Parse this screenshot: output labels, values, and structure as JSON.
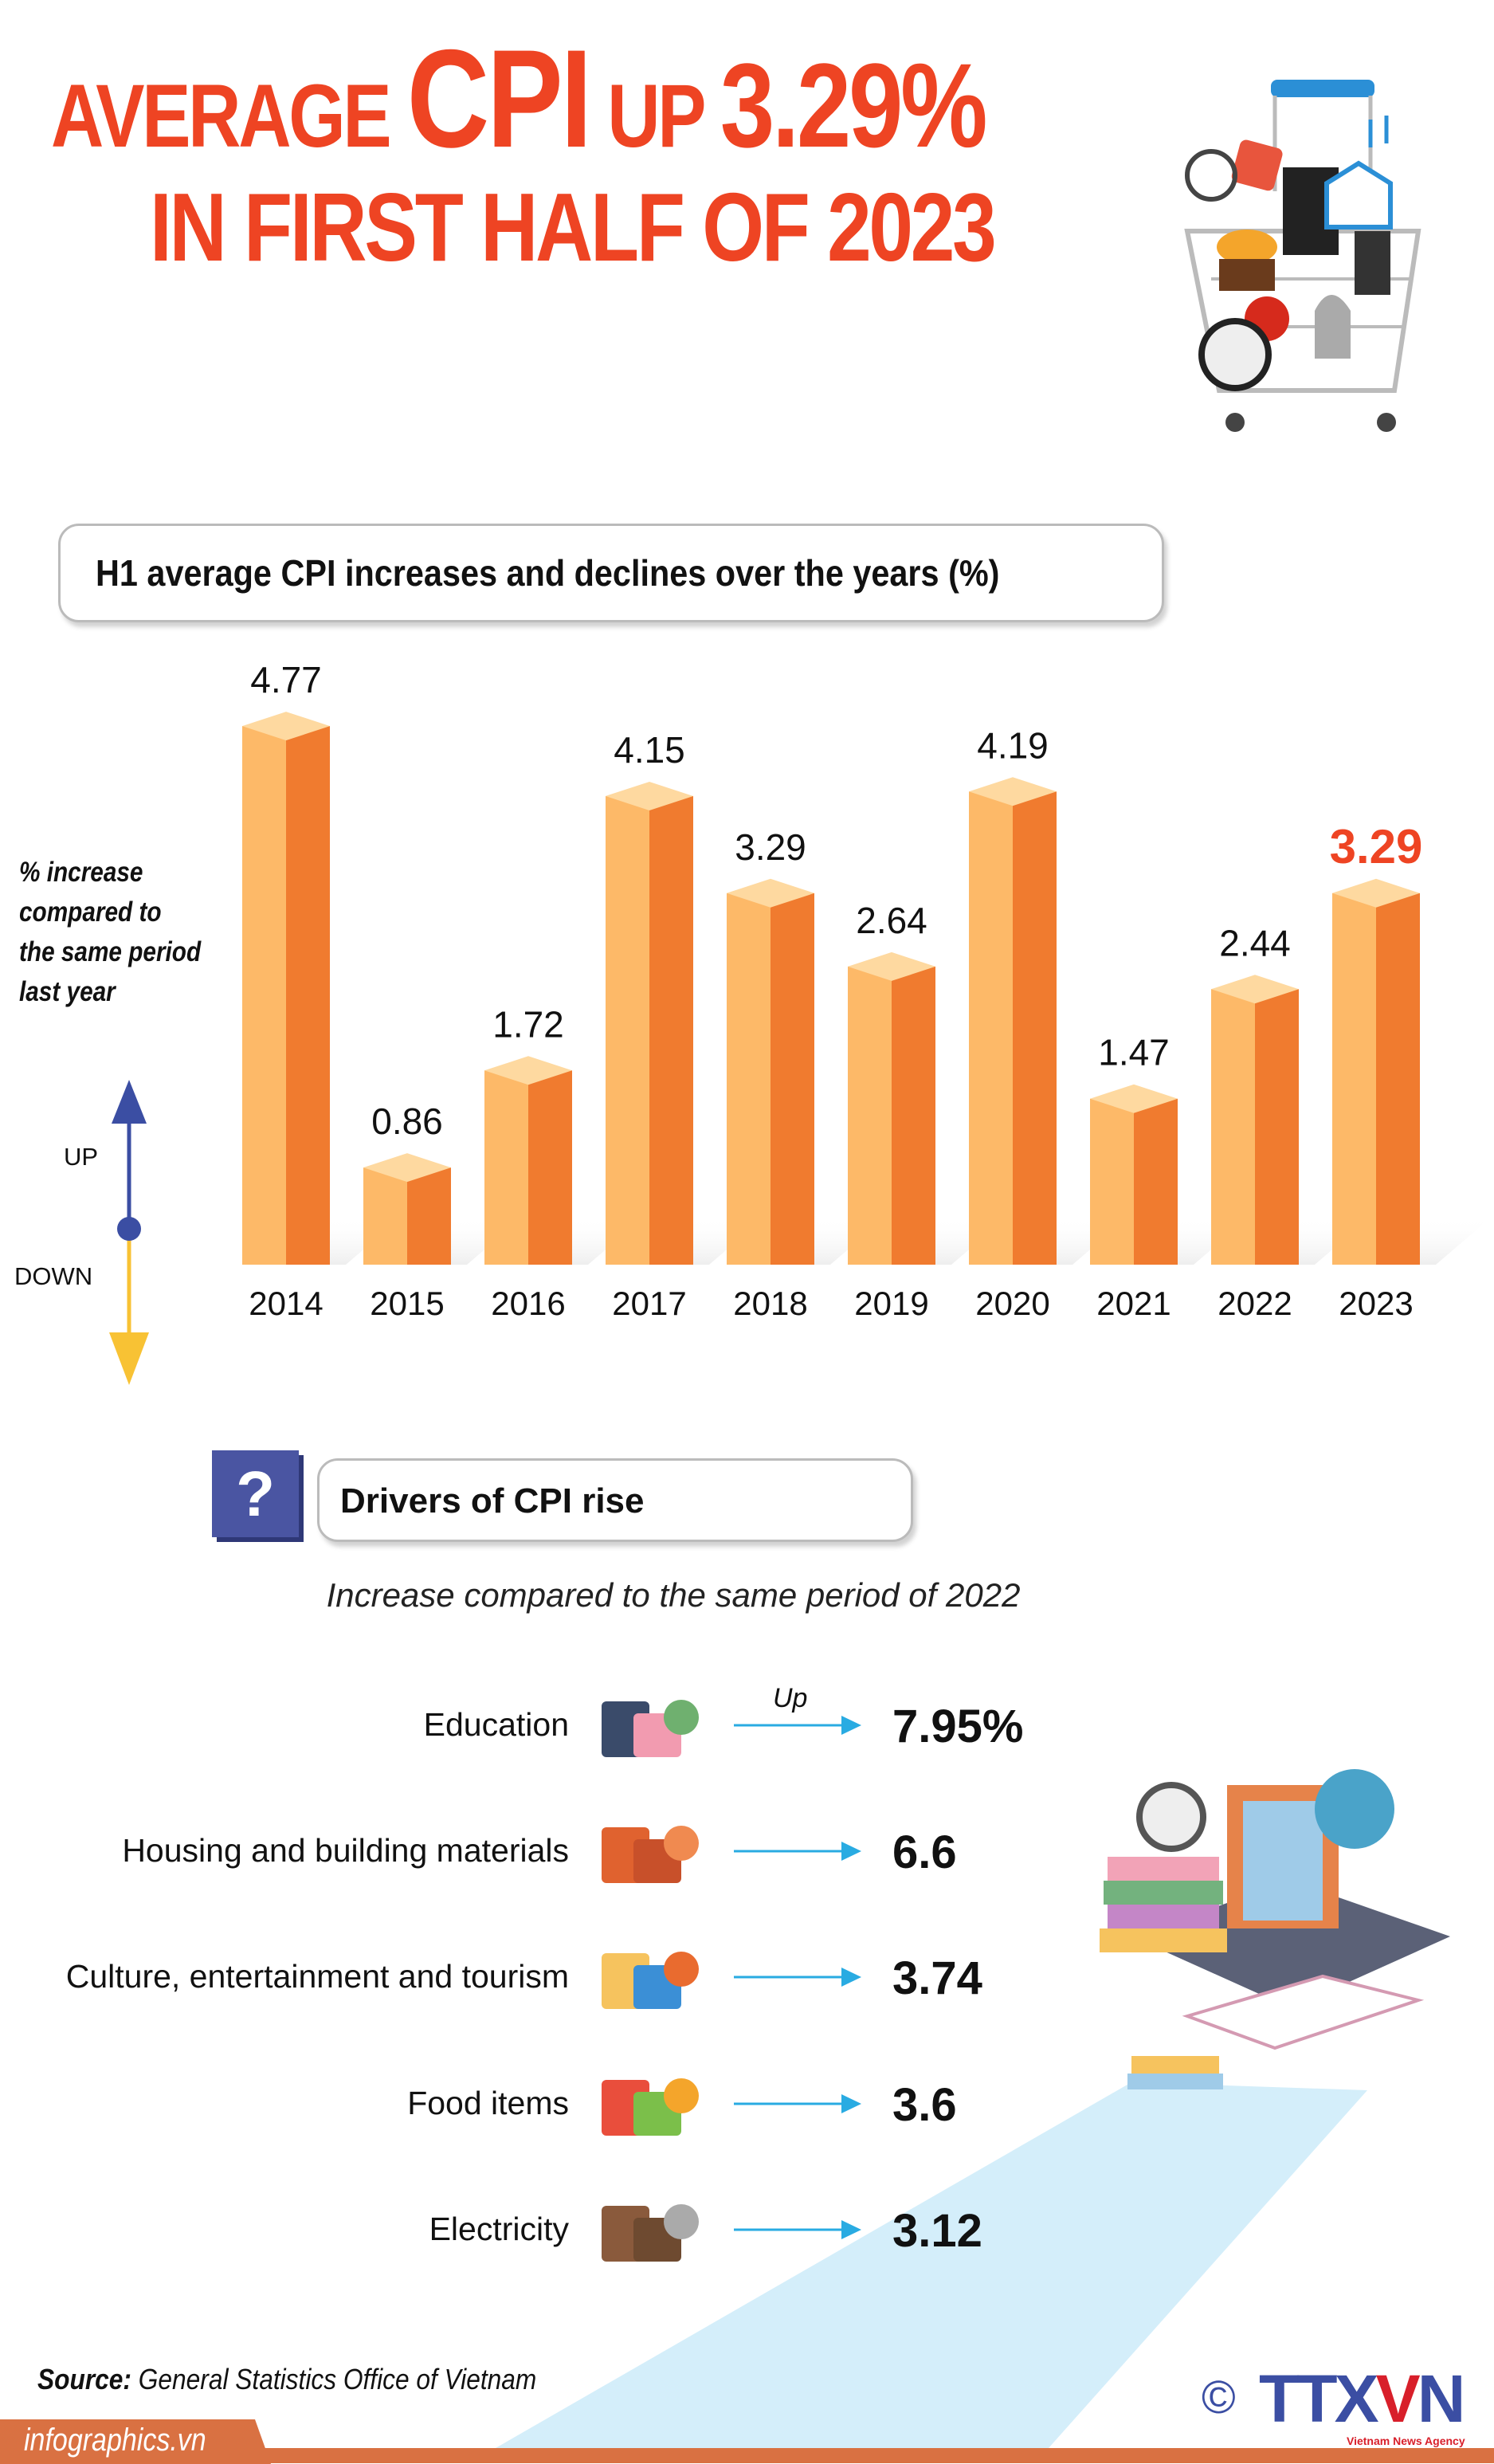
{
  "title": {
    "line1_a": "AVERAGE",
    "line1_b": "CPI",
    "line1_c": "UP",
    "line1_d": "3.29%",
    "line2": "IN FIRST HALF OF 2023"
  },
  "colors": {
    "title": "#ee4423",
    "bar_front": "#fdb968",
    "bar_side": "#f07b2f",
    "bar_top": "#fed9a0",
    "highlight": "#ee4423",
    "arrow": "#29abe2",
    "up_arrow": "#3b4ea3",
    "down_arrow": "#f8c234"
  },
  "chart_data": {
    "type": "bar",
    "title": "H1 average CPI increases and declines over the years (%)",
    "ylabel": "% increase compared to the same period last year",
    "categories": [
      "2014",
      "2015",
      "2016",
      "2017",
      "2018",
      "2019",
      "2020",
      "2021",
      "2022",
      "2023"
    ],
    "values": [
      4.77,
      0.86,
      1.72,
      4.15,
      3.29,
      2.64,
      4.19,
      1.47,
      2.44,
      3.29
    ],
    "value_labels": [
      "4.77",
      "0.86",
      "1.72",
      "4.15",
      "3.29",
      "2.64",
      "4.19",
      "1.47",
      "2.44",
      "3.29"
    ],
    "highlight": "2023",
    "ylim": [
      0,
      5
    ],
    "grid": false
  },
  "legend": {
    "up": "UP",
    "down": "DOWN"
  },
  "drivers": {
    "icon": "question-icon",
    "question_mark": "?",
    "title": "Drivers of CPI rise",
    "subtitle": "Increase compared to the same period of 2022",
    "up_label": "Up",
    "items": [
      {
        "label": "Education",
        "value": "7.95%",
        "icon": "books-graduation-cap-icon"
      },
      {
        "label": "Housing and building materials",
        "value": "6.6",
        "icon": "bricks-icon"
      },
      {
        "label": "Culture, entertainment and tourism",
        "value": "3.74",
        "icon": "tourists-icon"
      },
      {
        "label": "Food items",
        "value": "3.6",
        "icon": "vegetables-icon"
      },
      {
        "label": "Electricity",
        "value": "3.12",
        "icon": "power-pole-icon"
      }
    ]
  },
  "footer": {
    "source_label": "Source:",
    "source": "General Statistics Office of Vietnam",
    "site": "infographics.vn",
    "copyright": "©",
    "logo_a": "TTX",
    "logo_v": "V",
    "logo_n": "N",
    "logo_sub": "Vietnam News Agency"
  }
}
